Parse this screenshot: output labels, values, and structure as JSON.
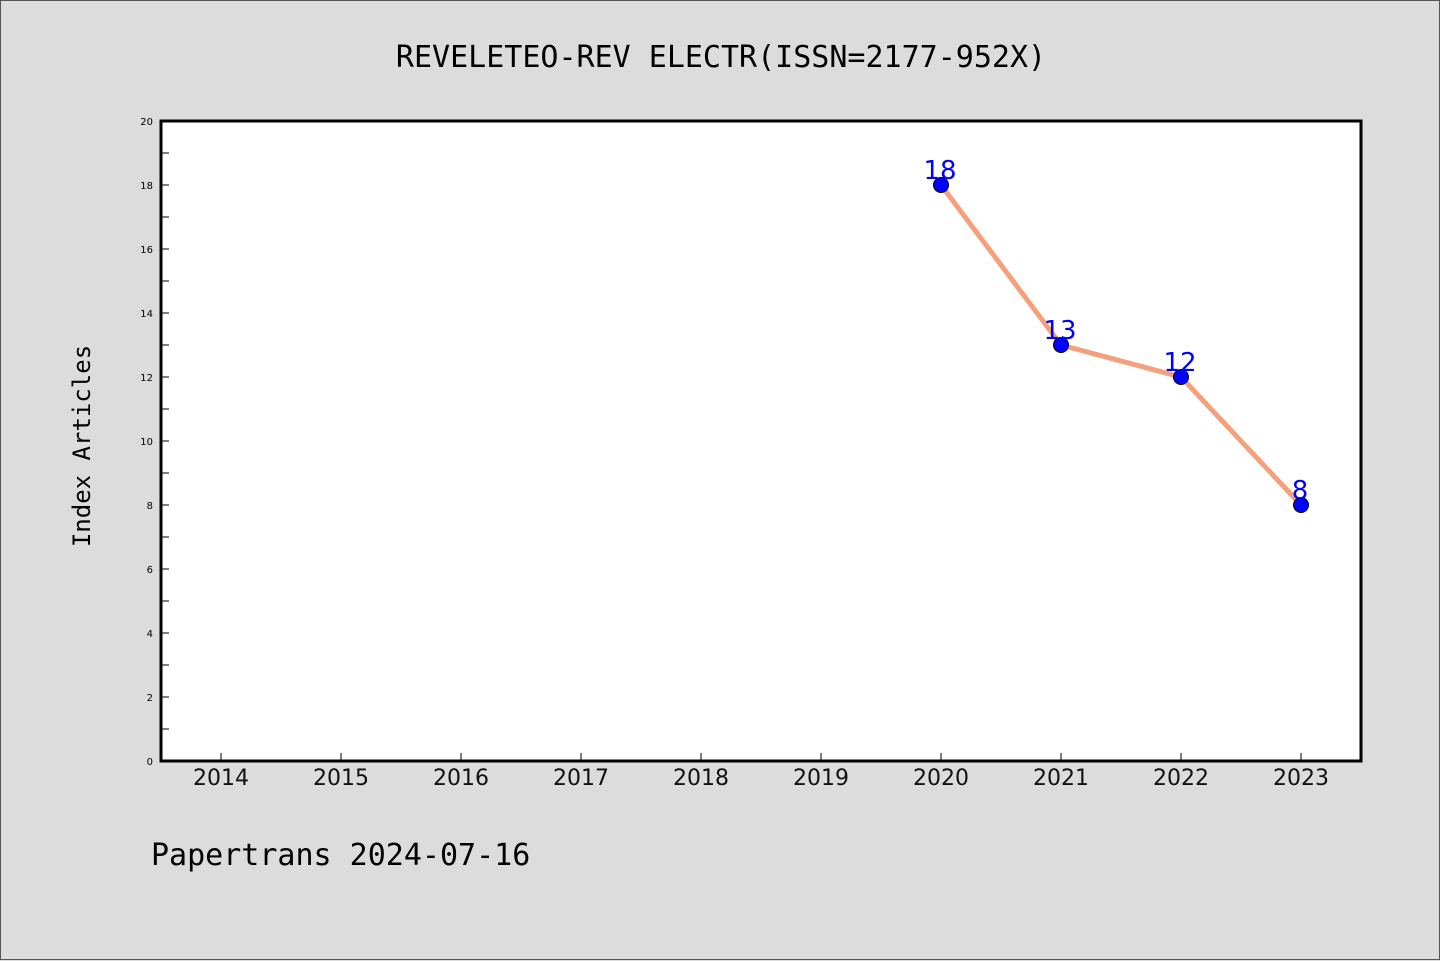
{
  "chart_data": {
    "type": "line",
    "title": "REVELETEO-REV ELECTR(ISSN=2177-952X)",
    "ylabel": "Index Articles",
    "xlabel": "",
    "footer": "Papertrans 2024-07-16",
    "categories": [
      "2014",
      "2015",
      "2016",
      "2017",
      "2018",
      "2019",
      "2020",
      "2021",
      "2022",
      "2023"
    ],
    "x": [
      2020,
      2021,
      2022,
      2023
    ],
    "y": [
      18,
      13,
      12,
      8
    ],
    "data_labels": [
      "18",
      "13",
      "12",
      "8"
    ],
    "ylim": [
      0,
      20
    ],
    "yticks": [
      0,
      2,
      4,
      6,
      8,
      10,
      12,
      14,
      16,
      18,
      20
    ],
    "grid": false,
    "colors": {
      "line": "#f4a07c",
      "marker": "#0000ff",
      "label": "#0000ff",
      "plot_bg": "#ffffff",
      "page_bg": "#dcdcdc"
    }
  }
}
